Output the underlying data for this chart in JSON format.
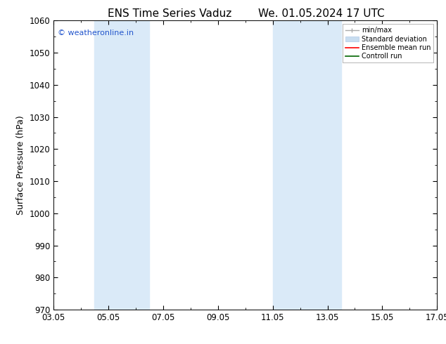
{
  "title_left": "ENS Time Series Vaduz",
  "title_right": "We. 01.05.2024 17 UTC",
  "ylabel": "Surface Pressure (hPa)",
  "ylim": [
    970,
    1060
  ],
  "yticks": [
    970,
    980,
    990,
    1000,
    1010,
    1020,
    1030,
    1040,
    1050,
    1060
  ],
  "xticks_labels": [
    "03.05",
    "05.05",
    "07.05",
    "09.05",
    "11.05",
    "13.05",
    "15.05",
    "17.05"
  ],
  "xtick_values": [
    0,
    2,
    4,
    6,
    8,
    10,
    12,
    14
  ],
  "xlim": [
    0,
    14
  ],
  "background_color": "#ffffff",
  "plot_bg_color": "#ffffff",
  "shade_regions": [
    {
      "x_start": 1.5,
      "x_end": 3.5,
      "color": "#daeaf8"
    },
    {
      "x_start": 8.0,
      "x_end": 10.5,
      "color": "#daeaf8"
    }
  ],
  "watermark_text": "© weatheronline.in",
  "watermark_color": "#2255cc",
  "legend_labels": [
    "min/max",
    "Standard deviation",
    "Ensemble mean run",
    "Controll run"
  ],
  "legend_colors": [
    "#aaaaaa",
    "#c8ddf0",
    "#ff0000",
    "#008800"
  ],
  "title_fontsize": 11,
  "tick_fontsize": 8.5,
  "ylabel_fontsize": 9
}
